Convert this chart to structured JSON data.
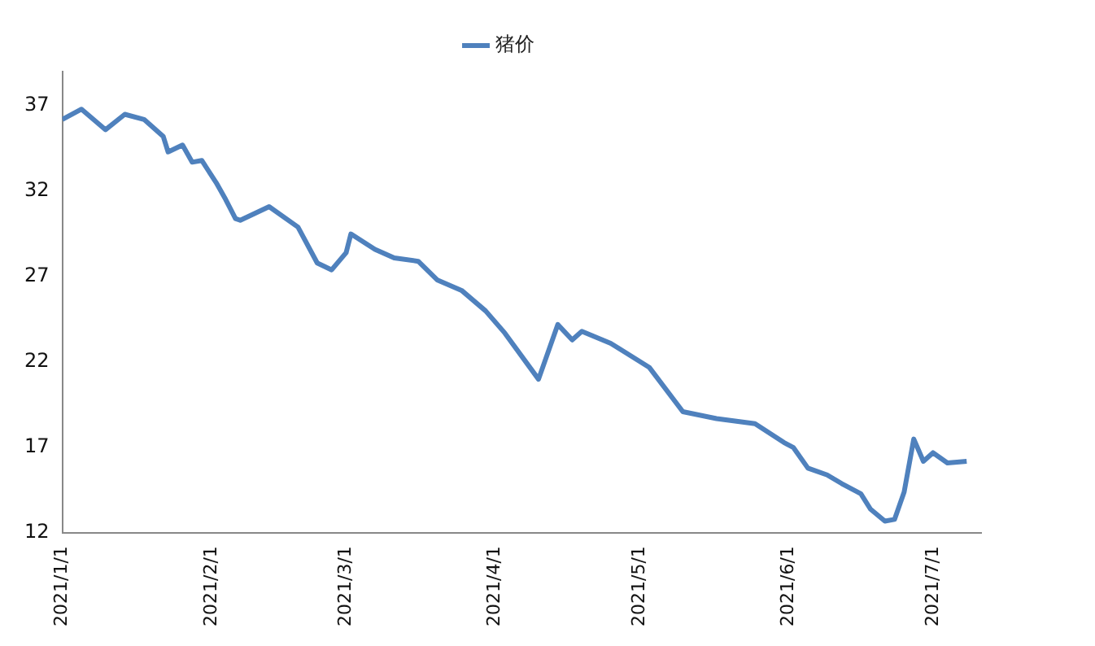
{
  "chart_data": {
    "type": "line",
    "legend": "top",
    "grid": false,
    "marker": "none",
    "line_style": "solid",
    "x": [
      "2021-01-01",
      "2021-01-05",
      "2021-01-10",
      "2021-01-14",
      "2021-01-18",
      "2021-01-22",
      "2021-01-23",
      "2021-01-26",
      "2021-01-28",
      "2021-01-30",
      "2021-02-02",
      "2021-02-04",
      "2021-02-06",
      "2021-02-07",
      "2021-02-13",
      "2021-02-19",
      "2021-02-23",
      "2021-02-26",
      "2021-03-01",
      "2021-03-02",
      "2021-03-07",
      "2021-03-11",
      "2021-03-16",
      "2021-03-20",
      "2021-03-25",
      "2021-03-30",
      "2021-04-03",
      "2021-04-10",
      "2021-04-14",
      "2021-04-17",
      "2021-04-19",
      "2021-04-25",
      "2021-05-03",
      "2021-05-10",
      "2021-05-17",
      "2021-05-25",
      "2021-05-31",
      "2021-06-02",
      "2021-06-05",
      "2021-06-09",
      "2021-06-12",
      "2021-06-16",
      "2021-06-18",
      "2021-06-21",
      "2021-06-23",
      "2021-06-25",
      "2021-06-27",
      "2021-06-29",
      "2021-07-01",
      "2021-07-04",
      "2021-07-08"
    ],
    "series": [
      {
        "name": "猪价",
        "color": "#4f81bd",
        "values": [
          36.2,
          36.8,
          35.6,
          36.5,
          36.2,
          35.2,
          34.3,
          34.7,
          33.7,
          33.8,
          32.5,
          31.5,
          30.4,
          30.3,
          31.1,
          29.9,
          27.8,
          27.4,
          28.4,
          29.5,
          28.6,
          28.1,
          27.9,
          26.8,
          26.2,
          25.0,
          23.7,
          21.0,
          24.2,
          23.3,
          23.8,
          23.1,
          21.7,
          19.1,
          18.7,
          18.4,
          17.3,
          17.0,
          15.8,
          15.4,
          14.9,
          14.3,
          13.4,
          12.7,
          12.8,
          14.4,
          17.5,
          16.2,
          16.7,
          16.1,
          16.2
        ]
      }
    ],
    "xlim": [
      "2021-01-01",
      "2021-07-11"
    ],
    "xticks": [
      {
        "value": "2021-01-01",
        "label": "2021/1/1"
      },
      {
        "value": "2021-02-01",
        "label": "2021/2/1"
      },
      {
        "value": "2021-03-01",
        "label": "2021/3/1"
      },
      {
        "value": "2021-04-01",
        "label": "2021/4/1"
      },
      {
        "value": "2021-05-01",
        "label": "2021/5/1"
      },
      {
        "value": "2021-06-01",
        "label": "2021/6/1"
      },
      {
        "value": "2021-07-01",
        "label": "2021/7/1"
      }
    ],
    "ylim": [
      12,
      39
    ],
    "yticks": [
      12,
      17,
      22,
      27,
      32,
      37
    ]
  }
}
